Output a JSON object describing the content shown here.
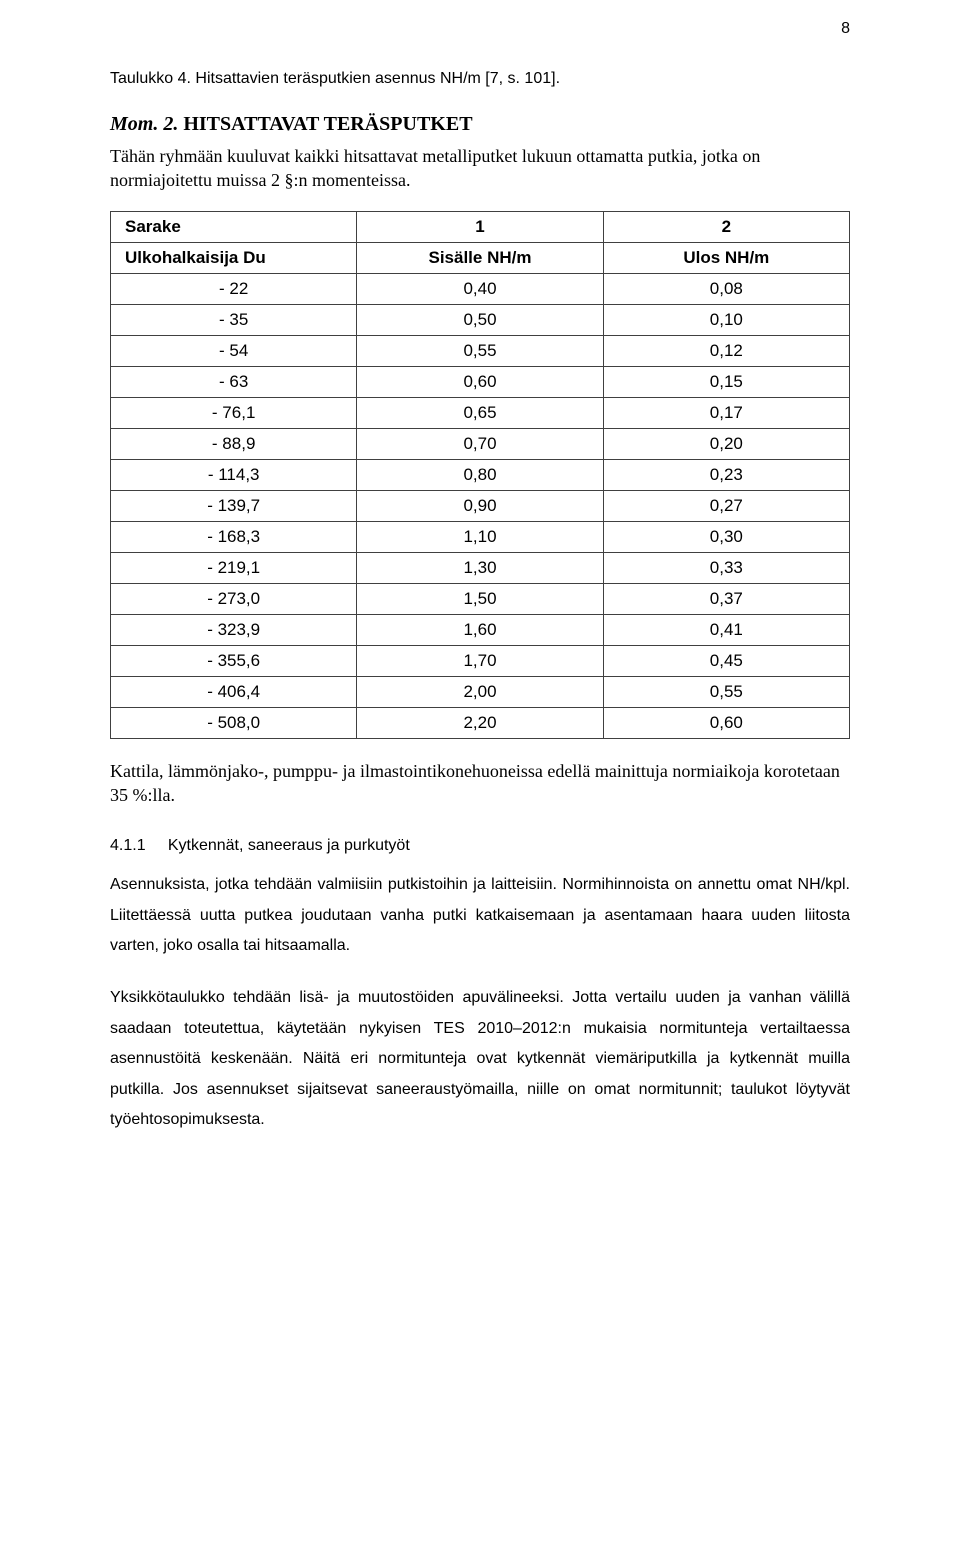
{
  "page_number": "8",
  "caption": "Taulukko 4. Hitsattavien teräsputkien asennus NH/m [7, s. 101].",
  "mom": {
    "number": "Mom. 2.",
    "title": "HITSATTAVAT TERÄSPUTKET",
    "intro": "Tähän ryhmään kuuluvat kaikki hitsattavat metalliputket lukuun ottamatta putkia, jotka on normiajoitettu muissa 2 §:n momenteissa."
  },
  "table": {
    "header1": {
      "c0": "Sarake",
      "c1": "1",
      "c2": "2"
    },
    "header2": {
      "c0": "Ulkohalkaisija Du",
      "c1": "Sisälle NH/m",
      "c2": "Ulos NH/m"
    },
    "rows": [
      {
        "du": "- 22",
        "in": "0,40",
        "out": "0,08"
      },
      {
        "du": "- 35",
        "in": "0,50",
        "out": "0,10"
      },
      {
        "du": "- 54",
        "in": "0,55",
        "out": "0,12"
      },
      {
        "du": "- 63",
        "in": "0,60",
        "out": "0,15"
      },
      {
        "du": "- 76,1",
        "in": "0,65",
        "out": "0,17"
      },
      {
        "du": "- 88,9",
        "in": "0,70",
        "out": "0,20"
      },
      {
        "du": "- 114,3",
        "in": "0,80",
        "out": "0,23"
      },
      {
        "du": "- 139,7",
        "in": "0,90",
        "out": "0,27"
      },
      {
        "du": "- 168,3",
        "in": "1,10",
        "out": "0,30"
      },
      {
        "du": "- 219,1",
        "in": "1,30",
        "out": "0,33"
      },
      {
        "du": "- 273,0",
        "in": "1,50",
        "out": "0,37"
      },
      {
        "du": "- 323,9",
        "in": "1,60",
        "out": "0,41"
      },
      {
        "du": "- 355,6",
        "in": "1,70",
        "out": "0,45"
      },
      {
        "du": "- 406,4",
        "in": "2,00",
        "out": "0,55"
      },
      {
        "du": "- 508,0",
        "in": "2,20",
        "out": "0,60"
      }
    ],
    "note": "Kattila, lämmönjako-, pumppu- ja ilmastointikonehuoneissa edellä mainittuja normiaikoja korotetaan 35 %:lla."
  },
  "section": {
    "number": "4.1.1",
    "title": "Kytkennät, saneeraus ja purkutyöt",
    "para1": "Asennuksista, jotka tehdään valmiisiin putkistoihin ja laitteisiin. Normihinnoista on annettu omat NH/kpl. Liitettäessä uutta putkea joudutaan vanha putki katkaisemaan ja asentamaan haara uuden liitosta varten, joko osalla tai hitsaamalla.",
    "para2": "Yksikkötaulukko tehdään lisä- ja muutostöiden apuvälineeksi. Jotta vertailu uuden ja vanhan välillä saadaan toteutettua, käytetään nykyisen TES 2010–2012:n mukaisia normitunteja vertailtaessa asennustöitä keskenään. Näitä eri normitunteja ovat kytkennät viemäriputkilla ja kytkennät muilla putkilla. Jos asennukset sijaitsevat saneeraustyömailla, niille on omat normitunnit; taulukot löytyvät työehtosopimuksesta."
  },
  "style": {
    "page_bg": "#ffffff",
    "text_color": "#000000",
    "table_border_color": "#404040",
    "body_font_size_pt": 12,
    "serif_font_size_pt": 13,
    "table_font_size_pt": 12
  }
}
